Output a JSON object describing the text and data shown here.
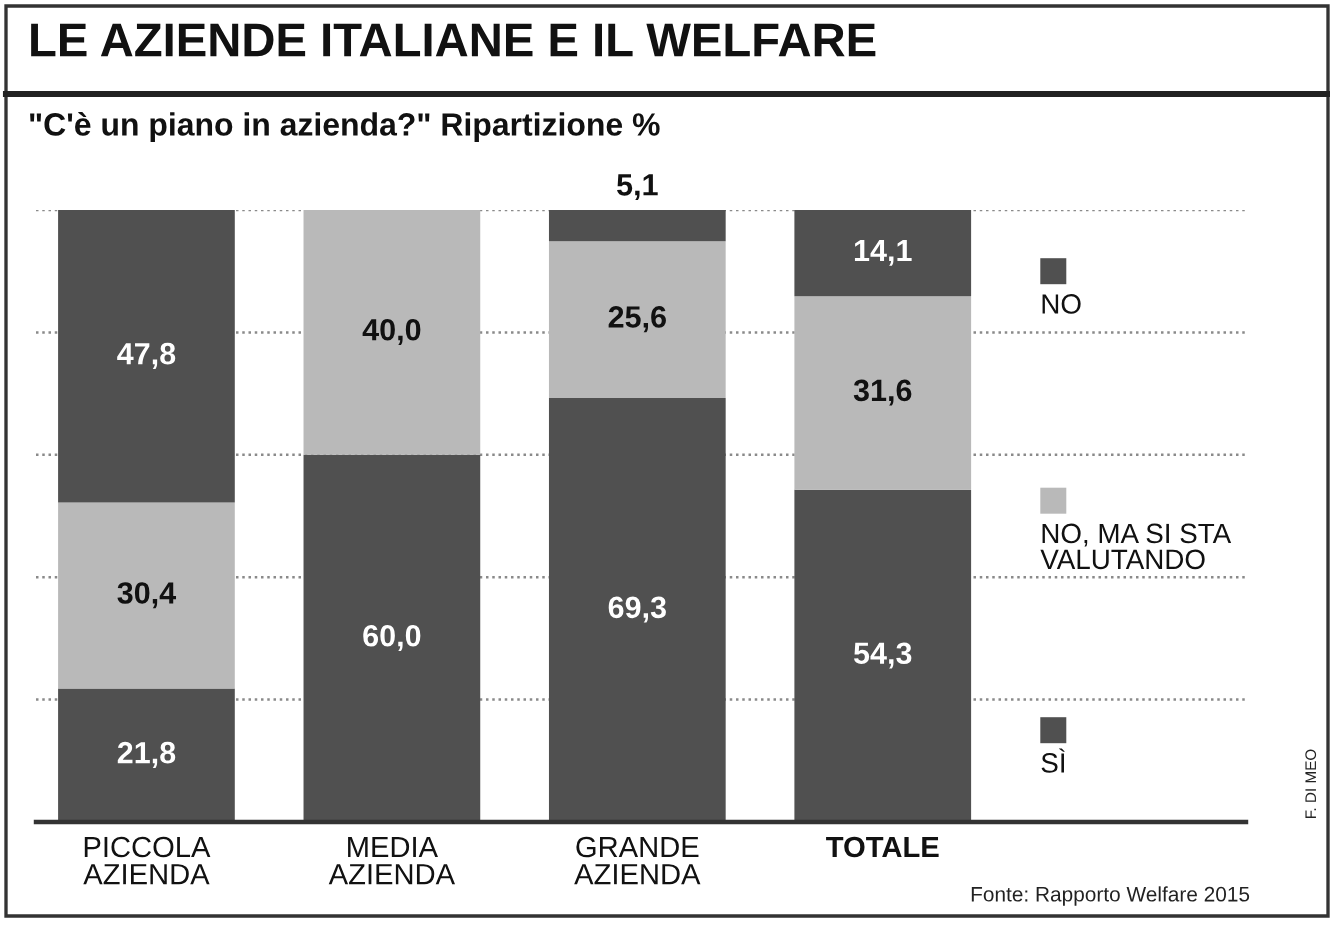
{
  "chart_data": {
    "type": "bar",
    "title": "LE AZIENDE ITALIANE E IL WELFARE",
    "subtitle": "\"C'è un piano in azienda?\" Ripartizione %",
    "categories": [
      "PICCOLA AZIENDA",
      "MEDIA AZIENDA",
      "GRANDE AZIENDA",
      "TOTALE"
    ],
    "stacked": true,
    "series": [
      {
        "name": "SÌ",
        "color": "#505050",
        "values": [
          21.8,
          60.0,
          69.3,
          54.3
        ],
        "value_labels": [
          "21,8",
          "60,0",
          "69,3",
          "54,3"
        ]
      },
      {
        "name": "NO, MA SI STA VALUTANDO",
        "color": "#b9b9b9",
        "values": [
          30.4,
          40.0,
          25.6,
          31.6
        ],
        "value_labels": [
          "30,4",
          "40,0",
          "25,6",
          "31,6"
        ]
      },
      {
        "name": "NO",
        "color": "#505050",
        "values": [
          47.8,
          null,
          5.1,
          14.1
        ],
        "value_labels": [
          "47,8",
          null,
          "5,1",
          "14,1"
        ]
      }
    ],
    "ylim": [
      0,
      100
    ],
    "yticks": [
      0,
      20,
      40,
      60,
      80,
      100
    ],
    "grid": "y",
    "tick_labels": "x",
    "legend": "right",
    "annotations": [
      "Fonte: Rapporto Welfare 2015",
      "F. DI MEO"
    ]
  }
}
